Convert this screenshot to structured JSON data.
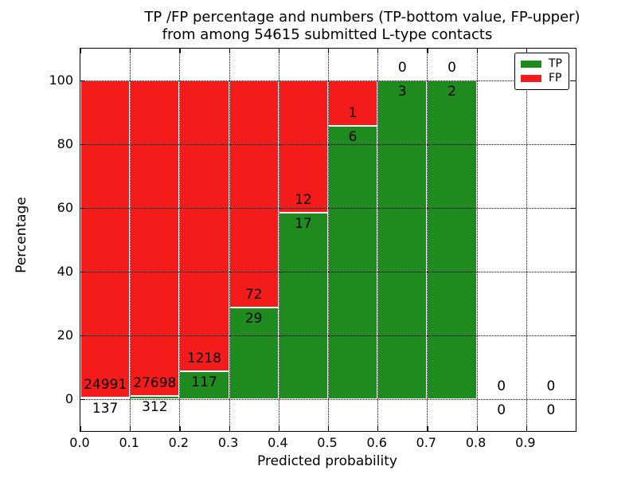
{
  "title": {
    "line1": "TP /FP percentage and numbers (TP-bottom value, FP-upper)",
    "line2": "from among 54615 submitted L-type contacts"
  },
  "axes": {
    "xlabel": "Predicted probability",
    "ylabel": "Percentage",
    "xtick_labels": [
      "0.0",
      "0.1",
      "0.2",
      "0.3",
      "0.4",
      "0.5",
      "0.6",
      "0.7",
      "0.8",
      "0.9"
    ],
    "ytick_labels": [
      "0",
      "20",
      "40",
      "60",
      "80",
      "100"
    ]
  },
  "legend": {
    "items": [
      {
        "label": "TP",
        "color": "#1f8b1f"
      },
      {
        "label": "FP",
        "color": "#f41b1b"
      }
    ]
  },
  "colors": {
    "tp": "#1f8b1f",
    "fp": "#f41b1b",
    "grid": "#000000",
    "background": "#ffffff"
  },
  "chart_data": {
    "type": "bar",
    "stacked": true,
    "normalized_to_percent": true,
    "title": "TP /FP percentage and numbers (TP-bottom value, FP-upper) from among 54615 submitted L-type contacts",
    "xlabel": "Predicted probability",
    "ylabel": "Percentage",
    "xlim": [
      0.0,
      1.0
    ],
    "ylim": [
      -10,
      110
    ],
    "bin_width": 0.1,
    "categories": [
      "0.0-0.1",
      "0.1-0.2",
      "0.2-0.3",
      "0.3-0.4",
      "0.4-0.5",
      "0.5-0.6",
      "0.6-0.7",
      "0.7-0.8",
      "0.8-0.9",
      "0.9-1.0"
    ],
    "series": [
      {
        "name": "TP",
        "color": "#1f8b1f",
        "counts": [
          137,
          312,
          117,
          29,
          17,
          6,
          3,
          2,
          0,
          0
        ]
      },
      {
        "name": "FP",
        "color": "#f41b1b",
        "counts": [
          24991,
          27698,
          1218,
          72,
          12,
          1,
          0,
          0,
          0,
          0
        ]
      }
    ],
    "total_contacts": 54615,
    "grid": true,
    "grid_style": "dotted",
    "legend_position": "upper right",
    "annotation_rule": "TP count below segment boundary, FP count above segment boundary"
  }
}
